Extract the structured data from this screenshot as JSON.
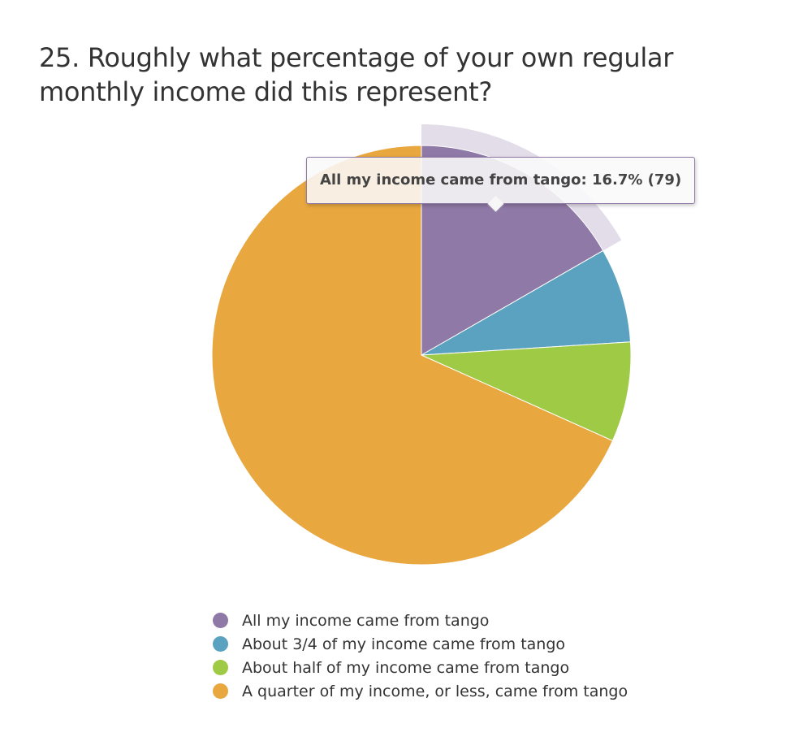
{
  "title": "25. Roughly what percentage of your own regular monthly income did this represent?",
  "tooltip": {
    "text": "All my income came from tango: 16.7% (79)"
  },
  "chart_data": {
    "type": "pie",
    "title": "25. Roughly what percentage of your own regular monthly income did this represent?",
    "categories": [
      "All my income came from tango",
      "About 3/4 of my income came from tango",
      "About half of my income came from tango",
      "A quarter of my income, or less, came from tango"
    ],
    "values": [
      16.7,
      7.3,
      7.7,
      68.3
    ],
    "colors": [
      "#8f79a6",
      "#5aa2bf",
      "#9fca45",
      "#e8a73f"
    ],
    "highlighted": 0,
    "legend_position": "bottom",
    "start_angle_deg": 0,
    "direction": "clockwise"
  }
}
